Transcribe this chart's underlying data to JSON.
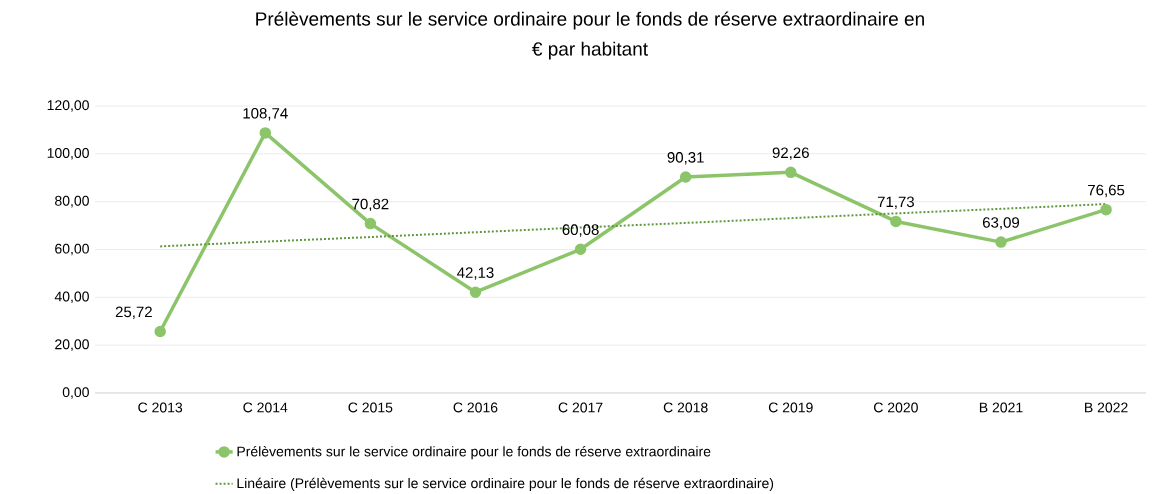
{
  "chart_data": {
    "type": "line",
    "title": "Prélèvements sur le service ordinaire pour le fonds de réserve extraordinaire en\n€ par habitant",
    "categories": [
      "C 2013",
      "C 2014",
      "C 2015",
      "C 2016",
      "C 2017",
      "C 2018",
      "C 2019",
      "C 2020",
      "B 2021",
      "B 2022"
    ],
    "series": [
      {
        "name": "Prélèvements sur le service ordinaire pour le fonds de réserve extraordinaire",
        "color": "#8cc46a",
        "marker": "circle",
        "line_style": "solid",
        "values": [
          25.72,
          108.74,
          70.82,
          42.13,
          60.08,
          90.31,
          92.26,
          71.73,
          63.09,
          76.65
        ],
        "value_labels": [
          "25,72",
          "108,74",
          "70,82",
          "42,13",
          "60,08",
          "90,31",
          "92,26",
          "71,73",
          "63,09",
          "76,65"
        ]
      },
      {
        "name": "Linéaire (Prélèvements sur le service ordinaire pour le fonds de réserve extraordinaire)",
        "color": "#5e9a3c",
        "marker": "none",
        "line_style": "dotted",
        "values": [
          61.3,
          63.3,
          65.2,
          67.2,
          69.2,
          71.1,
          73.1,
          75.1,
          77.0,
          79.0
        ]
      }
    ],
    "ylim": [
      0,
      120
    ],
    "yticks": [
      {
        "value": 0,
        "label": "0,00"
      },
      {
        "value": 20,
        "label": "20,00"
      },
      {
        "value": 40,
        "label": "40,00"
      },
      {
        "value": 60,
        "label": "60,00"
      },
      {
        "value": 80,
        "label": "80,00"
      },
      {
        "value": 100,
        "label": "100,00"
      },
      {
        "value": 120,
        "label": "120,00"
      }
    ],
    "grid": "y",
    "legend": "bottom"
  }
}
